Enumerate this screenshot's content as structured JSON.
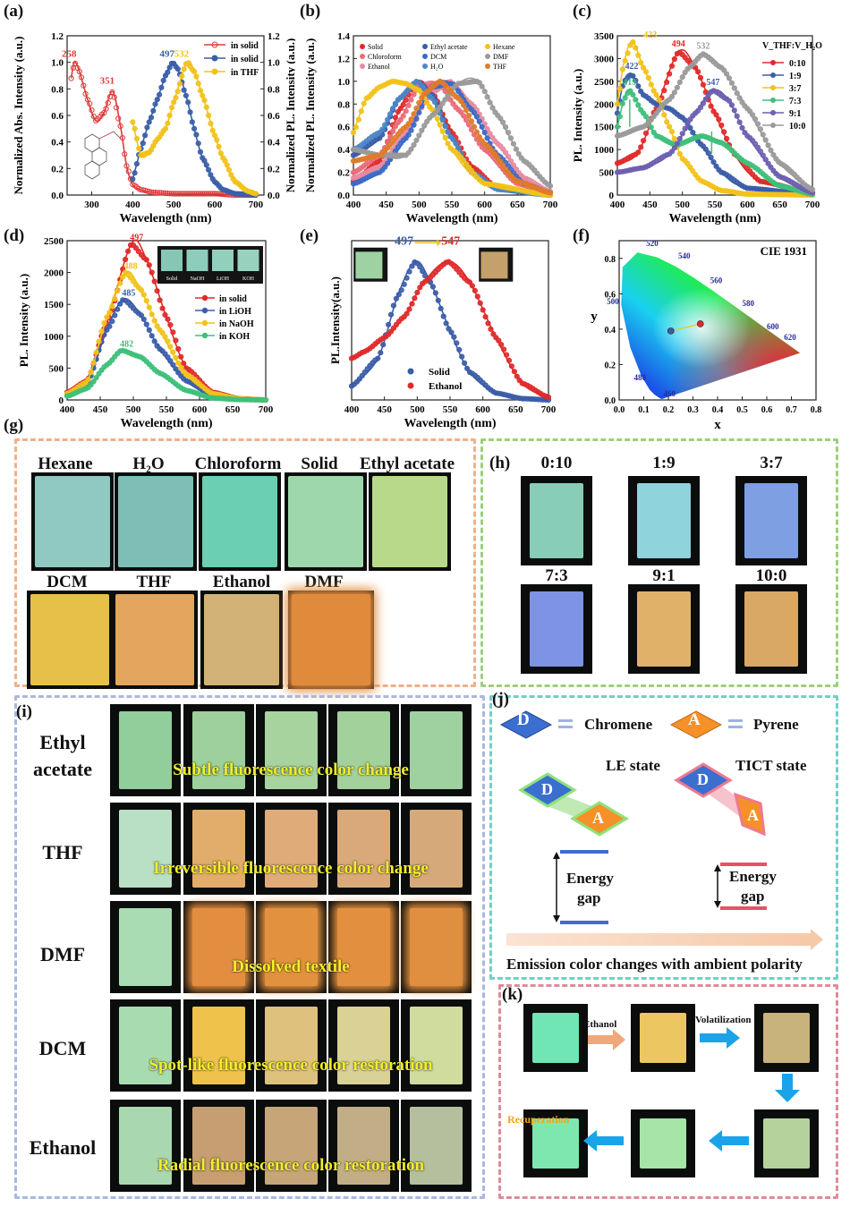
{
  "panels": {
    "a": {
      "letter": "(a)"
    },
    "b": {
      "letter": "(b)"
    },
    "c": {
      "letter": "(c)"
    },
    "d": {
      "letter": "(d)"
    },
    "e": {
      "letter": "(e)"
    },
    "f": {
      "letter": "(f)"
    },
    "g": {
      "letter": "(g)",
      "labels": [
        "Hexane",
        "H₂O",
        "Chloroform",
        "Solid",
        "Ethyl acetate",
        "DCM",
        "THF",
        "Ethanol",
        "DMF"
      ],
      "colors": [
        "#8fc9c2",
        "#7dbfb6",
        "#6bcfb3",
        "#9fd7ac",
        "#b8d98a",
        "#e7c04a",
        "#e4a55e",
        "#d2b276",
        "#e08a3c"
      ]
    },
    "h": {
      "letter": "(h)",
      "labels": [
        "0:10",
        "1:9",
        "3:7",
        "7:3",
        "9:1",
        "10:0"
      ],
      "colors": [
        "#88cdb8",
        "#8fd3dc",
        "#7f9fe3",
        "#7e93e6",
        "#e0b269",
        "#d9a865"
      ]
    },
    "i": {
      "letter": "(i)",
      "rows": [
        {
          "label": "Ethyl acetate",
          "caption": "Subtle fluorescence color change",
          "colors": [
            "#92cd9c",
            "#9dd09c",
            "#a7d39f",
            "#a3d19c",
            "#9fd1a0"
          ]
        },
        {
          "label": "THF",
          "caption": "Irreversible fluorescence color change",
          "colors": [
            "#b9e0c4",
            "#e2ad6a",
            "#deab79",
            "#daa97a",
            "#d6a97a"
          ]
        },
        {
          "label": "DMF",
          "caption": "Dissolved textile",
          "colors": [
            "#a9dcb3",
            "#e28d3f",
            "#e2913f",
            "#e28f3f",
            "#e08e3f"
          ]
        },
        {
          "label": "DCM",
          "caption": "Spot-like fluorescence color restoration",
          "colors": [
            "#a7dbb0",
            "#eec24b",
            "#dec17c",
            "#d9d195",
            "#cfdc9e"
          ]
        },
        {
          "label": "Ethanol",
          "caption": "Radial fluorescence color restoration",
          "colors": [
            "#a8d7b0",
            "#c79e72",
            "#c6a579",
            "#c2ae86",
            "#b6bf9d"
          ]
        }
      ]
    },
    "j": {
      "letter": "(j)",
      "d_label": "D",
      "a_label": "A",
      "chromene": "Chromene",
      "pyrene": "Pyrene",
      "le_state": "LE state",
      "tict_state": "TICT state",
      "energy": "Energy",
      "gap": "gap",
      "caption": "Emission color changes with ambient polarity"
    },
    "k": {
      "letter": "(k)",
      "ethanol": "Ethanol",
      "volatilization": "Volatilization",
      "recuperation": "Recuperation",
      "colors": [
        "#6fe6b4",
        "#ecc660",
        "#c9b37c",
        "#b6d29c",
        "#a6e4a8",
        "#7ee7b0"
      ]
    }
  },
  "chart_data": [
    {
      "panel": "a",
      "type": "line",
      "xlabel": "Wavelength (nm)",
      "ylabel": "Normalized Abs. Intensity (a.u.)",
      "ylabel2": "Normalized PL. Intensity (a.u.)",
      "xlim": [
        240,
        720
      ],
      "ylim": [
        0,
        1.2
      ],
      "xticks": [
        300,
        400,
        500,
        600,
        700
      ],
      "yticks": [
        0.0,
        0.2,
        0.4,
        0.6,
        0.8,
        1.0,
        1.2
      ],
      "legend": [
        "in solid",
        "in solid",
        "in THF"
      ],
      "legend_position": "top-right",
      "annotations": [
        "258",
        "351",
        "497",
        "532"
      ],
      "series": [
        {
          "name": "in solid",
          "color": "#e03a3a",
          "style": "abs",
          "x": [
            250,
            258,
            270,
            290,
            310,
            330,
            351,
            370,
            385,
            400,
            420,
            450,
            500,
            550,
            600,
            650,
            700
          ],
          "y": [
            0.88,
            1.0,
            0.93,
            0.72,
            0.56,
            0.62,
            0.78,
            0.52,
            0.22,
            0.08,
            0.04,
            0.02,
            0.01,
            0.01,
            0.01,
            0.0,
            0.0
          ]
        },
        {
          "name": "in solid",
          "color": "#3a5fa8",
          "style": "pl",
          "x": [
            400,
            420,
            440,
            460,
            480,
            497,
            510,
            530,
            550,
            570,
            600,
            620,
            650,
            700
          ],
          "y": [
            0.12,
            0.35,
            0.55,
            0.72,
            0.9,
            1.0,
            0.95,
            0.75,
            0.5,
            0.28,
            0.1,
            0.04,
            0.01,
            0.0
          ]
        },
        {
          "name": "in THF",
          "color": "#f2c21b",
          "style": "pl",
          "x": [
            400,
            420,
            440,
            460,
            480,
            500,
            532,
            550,
            570,
            600,
            620,
            650,
            680,
            700
          ],
          "y": [
            0.55,
            0.3,
            0.32,
            0.42,
            0.5,
            0.7,
            1.0,
            0.93,
            0.75,
            0.45,
            0.28,
            0.1,
            0.03,
            0.01
          ]
        }
      ]
    },
    {
      "panel": "b",
      "type": "line",
      "xlabel": "Wavelength (nm)",
      "ylabel": "Normalized PL. Intensity (a.u.)",
      "xlim": [
        400,
        700
      ],
      "ylim": [
        0,
        1.4
      ],
      "xticks": [
        400,
        450,
        500,
        550,
        600,
        650,
        700
      ],
      "yticks": [
        0.0,
        0.2,
        0.4,
        0.6,
        0.8,
        1.0,
        1.2,
        1.4
      ],
      "legend_position": "top",
      "series": [
        {
          "name": "Solid",
          "color": "#e02a2a",
          "x": [
            400,
            440,
            470,
            497,
            520,
            550,
            580,
            620,
            700
          ],
          "y": [
            0.12,
            0.3,
            0.75,
            1.0,
            0.9,
            0.55,
            0.25,
            0.06,
            0.0
          ]
        },
        {
          "name": "Chloroform",
          "color": "#e86d7a",
          "x": [
            400,
            440,
            470,
            500,
            530,
            560,
            600,
            650,
            700
          ],
          "y": [
            0.2,
            0.35,
            0.65,
            0.95,
            0.98,
            0.75,
            0.4,
            0.1,
            0.02
          ]
        },
        {
          "name": "Ethanol",
          "color": "#e88aa0",
          "x": [
            400,
            440,
            480,
            520,
            547,
            580,
            620,
            660,
            700
          ],
          "y": [
            0.15,
            0.25,
            0.55,
            0.9,
            1.0,
            0.8,
            0.45,
            0.15,
            0.03
          ]
        },
        {
          "name": "Ethyl acetate",
          "color": "#3b5da8",
          "x": [
            400,
            440,
            470,
            497,
            520,
            550,
            580,
            620,
            700
          ],
          "y": [
            0.35,
            0.5,
            0.85,
            1.0,
            0.88,
            0.5,
            0.2,
            0.05,
            0.0
          ]
        },
        {
          "name": "DCM",
          "color": "#3b69c8",
          "x": [
            400,
            440,
            480,
            520,
            550,
            580,
            620,
            660,
            700
          ],
          "y": [
            0.1,
            0.2,
            0.5,
            0.95,
            0.98,
            0.75,
            0.35,
            0.1,
            0.02
          ]
        },
        {
          "name": "H₂O",
          "color": "#4d86c8",
          "x": [
            400,
            440,
            470,
            497,
            520,
            550,
            580,
            620,
            700
          ],
          "y": [
            0.4,
            0.55,
            0.85,
            1.0,
            0.85,
            0.5,
            0.2,
            0.05,
            0.0
          ]
        },
        {
          "name": "Hexane",
          "color": "#f2c21b",
          "x": [
            400,
            420,
            440,
            460,
            480,
            500,
            520,
            550,
            600,
            700
          ],
          "y": [
            0.55,
            0.85,
            0.95,
            1.0,
            0.98,
            0.92,
            0.75,
            0.4,
            0.1,
            0.0
          ]
        },
        {
          "name": "DMF",
          "color": "#9a9a9a",
          "x": [
            400,
            440,
            480,
            520,
            560,
            590,
            620,
            660,
            700
          ],
          "y": [
            0.4,
            0.35,
            0.35,
            0.7,
            0.98,
            1.0,
            0.7,
            0.3,
            0.08
          ]
        },
        {
          "name": "THF",
          "color": "#e07b2a",
          "x": [
            400,
            440,
            480,
            510,
            532,
            560,
            600,
            650,
            700
          ],
          "y": [
            0.3,
            0.35,
            0.6,
            0.9,
            1.0,
            0.85,
            0.45,
            0.12,
            0.02
          ]
        }
      ]
    },
    {
      "panel": "c",
      "type": "line",
      "xlabel": "Wavelength (nm)",
      "ylabel": "PL. Intensity (a.u.)",
      "xlim": [
        400,
        700
      ],
      "ylim": [
        0,
        3500
      ],
      "xticks": [
        400,
        450,
        500,
        550,
        600,
        650,
        700
      ],
      "yticks": [
        0,
        500,
        1000,
        1500,
        2000,
        2500,
        3000,
        3500
      ],
      "legend_title": "V_THF:V_H₂O",
      "legend_position": "top-right",
      "annotations": [
        "423",
        "494",
        "532",
        "422",
        "419",
        "547"
      ],
      "series": [
        {
          "name": "0:10",
          "color": "#e02a2a",
          "x": [
            400,
            430,
            460,
            494,
            520,
            550,
            580,
            620,
            700
          ],
          "y": [
            700,
            900,
            1900,
            3150,
            2800,
            1800,
            900,
            300,
            50
          ]
        },
        {
          "name": "1:9",
          "color": "#3b5da8",
          "x": [
            400,
            410,
            422,
            440,
            460,
            480,
            500,
            530,
            560,
            600,
            700
          ],
          "y": [
            1800,
            2500,
            2650,
            2200,
            2000,
            1900,
            1700,
            1100,
            500,
            150,
            10
          ]
        },
        {
          "name": "3:7",
          "color": "#f2c21b",
          "x": [
            400,
            410,
            423,
            440,
            460,
            480,
            500,
            530,
            560,
            600,
            700
          ],
          "y": [
            2000,
            2900,
            3380,
            2800,
            2200,
            1500,
            800,
            300,
            100,
            20,
            0
          ]
        },
        {
          "name": "7:3",
          "color": "#3ec07a",
          "x": [
            400,
            410,
            419,
            440,
            460,
            490,
            530,
            560,
            600,
            650,
            700
          ],
          "y": [
            1500,
            2100,
            2300,
            1800,
            1300,
            1100,
            1300,
            1150,
            700,
            200,
            20
          ]
        },
        {
          "name": "9:1",
          "color": "#6d5fb0",
          "x": [
            400,
            440,
            480,
            520,
            547,
            570,
            600,
            650,
            700
          ],
          "y": [
            500,
            600,
            900,
            1800,
            2300,
            2100,
            1300,
            400,
            50
          ]
        },
        {
          "name": "10:0",
          "color": "#9a9a9a",
          "x": [
            400,
            440,
            480,
            510,
            532,
            560,
            600,
            650,
            700
          ],
          "y": [
            1300,
            1500,
            2100,
            2800,
            3100,
            2800,
            1900,
            700,
            120
          ]
        }
      ]
    },
    {
      "panel": "d",
      "type": "line",
      "xlabel": "Wavelength (nm)",
      "ylabel": "PL. Intensity (a.u.)",
      "xlim": [
        400,
        700
      ],
      "ylim": [
        0,
        2500
      ],
      "xticks": [
        400,
        450,
        500,
        550,
        600,
        650,
        700
      ],
      "yticks": [
        0,
        500,
        1000,
        1500,
        2000,
        2500
      ],
      "legend_position": "right",
      "annotations": [
        "497",
        "488",
        "485",
        "482"
      ],
      "inset_labels": [
        "Solid",
        "NaOH",
        "LiOH",
        "KOH"
      ],
      "inset_colors": [
        "#86c6b4",
        "#8ccdbb",
        "#92cfbc",
        "#98d2bf"
      ],
      "series": [
        {
          "name": "in solid",
          "color": "#e02a2a",
          "x": [
            400,
            430,
            460,
            497,
            520,
            550,
            580,
            620,
            660,
            700
          ],
          "y": [
            120,
            300,
            1200,
            2450,
            2200,
            1300,
            500,
            120,
            20,
            0
          ]
        },
        {
          "name": "in LiOH",
          "color": "#3b5da8",
          "x": [
            400,
            430,
            460,
            485,
            510,
            540,
            580,
            620,
            660,
            700
          ],
          "y": [
            80,
            250,
            1100,
            1580,
            1350,
            800,
            300,
            70,
            10,
            0
          ]
        },
        {
          "name": "in NaOH",
          "color": "#f2c21b",
          "x": [
            400,
            430,
            460,
            488,
            510,
            540,
            580,
            620,
            660,
            700
          ],
          "y": [
            100,
            280,
            1300,
            2000,
            1750,
            1100,
            400,
            100,
            15,
            0
          ]
        },
        {
          "name": "in KOH",
          "color": "#3ec07a",
          "x": [
            400,
            430,
            460,
            482,
            510,
            540,
            580,
            620,
            660,
            700
          ],
          "y": [
            60,
            180,
            550,
            780,
            680,
            420,
            150,
            30,
            5,
            0
          ]
        }
      ]
    },
    {
      "panel": "e",
      "type": "line",
      "xlabel": "Wavelength (nm)",
      "ylabel": "PL.Intensity(a.u.)",
      "xlim": [
        400,
        700
      ],
      "ylim": [
        0,
        1.15
      ],
      "xticks": [
        400,
        450,
        500,
        550,
        600,
        650,
        700
      ],
      "legend_position": "bottom-left",
      "annotations": [
        "497",
        "547"
      ],
      "series": [
        {
          "name": "Solid",
          "color": "#3b5da8",
          "x": [
            400,
            440,
            470,
            497,
            520,
            550,
            580,
            620,
            660,
            700
          ],
          "y": [
            0.1,
            0.3,
            0.75,
            1.0,
            0.85,
            0.5,
            0.2,
            0.05,
            0.01,
            0.0
          ]
        },
        {
          "name": "Ethanol",
          "color": "#e02a2a",
          "x": [
            400,
            420,
            450,
            480,
            510,
            547,
            580,
            620,
            660,
            700
          ],
          "y": [
            0.3,
            0.35,
            0.45,
            0.6,
            0.85,
            1.0,
            0.85,
            0.45,
            0.12,
            0.02
          ]
        }
      ]
    },
    {
      "panel": "f",
      "type": "scatter",
      "title": "CIE 1931",
      "xlabel": "x",
      "ylabel": "y",
      "xlim": [
        0,
        0.8
      ],
      "ylim": [
        0,
        0.9
      ],
      "xticks": [
        0.0,
        0.1,
        0.2,
        0.3,
        0.4,
        0.5,
        0.6,
        0.7,
        0.8
      ],
      "yticks": [
        0.0,
        0.2,
        0.4,
        0.6,
        0.8
      ],
      "locus_labels": [
        "460",
        "480",
        "500",
        "520",
        "540",
        "560",
        "580",
        "600",
        "620"
      ],
      "series": [
        {
          "name": "Solid",
          "color": "#3b5da8",
          "x": [
            0.21
          ],
          "y": [
            0.39
          ]
        },
        {
          "name": "Ethanol",
          "color": "#e02a2a",
          "x": [
            0.33
          ],
          "y": [
            0.43
          ]
        }
      ]
    }
  ]
}
